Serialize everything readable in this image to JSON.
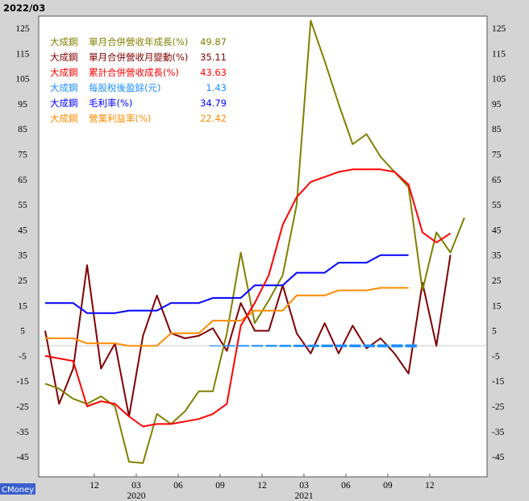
{
  "chart_data": {
    "type": "line",
    "title": "2022/03",
    "watermark": "CMoney",
    "ylim": [
      -55,
      130
    ],
    "y_ticks": [
      125,
      115,
      105,
      95,
      85,
      75,
      65,
      55,
      45,
      35,
      25,
      15,
      5,
      -5,
      -15,
      -25,
      -35,
      -45
    ],
    "x_tick_labels": [
      {
        "label": "12",
        "index": 3
      },
      {
        "label": "03",
        "index": 6
      },
      {
        "label": "06",
        "index": 9
      },
      {
        "label": "09",
        "index": 12
      },
      {
        "label": "12",
        "index": 15
      },
      {
        "label": "03",
        "index": 18
      },
      {
        "label": "06",
        "index": 21
      },
      {
        "label": "09",
        "index": 24
      },
      {
        "label": "12",
        "index": 27
      }
    ],
    "year_labels": [
      {
        "label": "2020",
        "index": 6
      },
      {
        "label": "2021",
        "index": 18
      }
    ],
    "x_count": 31,
    "series": [
      {
        "company": "大成鋼",
        "name": "單月合併營收年成長(%)",
        "last": "49.87",
        "color": "#808000",
        "width": 2,
        "values": [
          -16,
          -18,
          -22,
          -24,
          -21,
          -25,
          -47,
          -47.5,
          -28,
          -32,
          -27,
          -19,
          -19,
          4,
          36,
          8,
          17,
          27,
          55,
          128,
          112,
          95,
          79,
          83,
          74,
          68,
          62,
          21,
          44,
          36,
          49.87
        ]
      },
      {
        "company": "大成鋼",
        "name": "單月合併營收月變動(%)",
        "last": "35.11",
        "color": "#800000",
        "width": 2,
        "values": [
          5,
          -24,
          -10,
          31,
          -10,
          0,
          -29,
          3,
          19,
          4,
          2,
          3,
          6,
          -3,
          16,
          5,
          5,
          23,
          4,
          -4,
          8,
          -4,
          7,
          -2,
          2,
          -4,
          -12,
          24,
          -1,
          35.11
        ]
      },
      {
        "company": "大成鋼",
        "name": "累計合併營收成長(%)",
        "last": "43.63",
        "color": "#ff0000",
        "width": 2,
        "values": [
          -5,
          -6,
          -7,
          -25,
          -23,
          -24,
          -29,
          -33,
          -32,
          -32,
          -31,
          -30,
          -28,
          -24,
          7,
          16,
          27,
          47,
          58,
          64,
          66,
          68,
          69,
          69,
          69,
          68,
          63,
          44,
          40,
          43.63
        ]
      },
      {
        "company": "大成鋼",
        "name": "每股稅後盈餘(元)",
        "last": "1.43",
        "color": "#1e90ff",
        "width": 1.5,
        "style": "eps",
        "values": [
          null,
          null,
          null,
          null,
          null,
          null,
          null,
          null,
          null,
          null,
          null,
          null,
          0.3,
          0.5,
          0.6,
          0.7,
          0.8,
          0.9,
          1.0,
          1.1,
          1.2,
          1.25,
          1.3,
          1.35,
          1.4,
          1.43,
          1.43
        ]
      },
      {
        "company": "大成鋼",
        "name": "毛利率(%)",
        "last": "34.79",
        "color": "#0000ff",
        "width": 2,
        "values": [
          16,
          16,
          16,
          12,
          12,
          12,
          13,
          13,
          13,
          16,
          16,
          16,
          18,
          18,
          18,
          23,
          23,
          23,
          28,
          28,
          28,
          32,
          32,
          32,
          35,
          35,
          35
        ]
      },
      {
        "company": "大成鋼",
        "name": "營業利益率(%)",
        "last": "22.42",
        "color": "#ff8c00",
        "width": 2,
        "values": [
          2,
          2,
          2,
          0,
          0,
          0,
          -1,
          -1,
          -1,
          4,
          4,
          4,
          9,
          9,
          9,
          13,
          13,
          13,
          19,
          19,
          19,
          21,
          21,
          21,
          22,
          22,
          22
        ]
      }
    ]
  }
}
